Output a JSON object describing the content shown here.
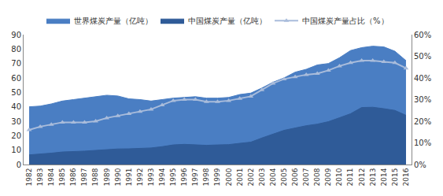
{
  "chart_data": {
    "type": "area",
    "categories": [
      "1982",
      "1983",
      "1984",
      "1985",
      "1986",
      "1987",
      "1988",
      "1989",
      "1990",
      "1991",
      "1992",
      "1993",
      "1994",
      "1995",
      "1996",
      "1997",
      "1998",
      "1999",
      "2000",
      "2001",
      "2002",
      "2003",
      "2004",
      "2005",
      "2006",
      "2007",
      "2008",
      "2009",
      "2010",
      "2011",
      "2012",
      "2013",
      "2014",
      "2015",
      "2016"
    ],
    "series": [
      {
        "name": "世界煤炭产量（亿吨）",
        "type": "area",
        "color": "#4a7ec3",
        "values": [
          40,
          40.5,
          42,
          44,
          45,
          46,
          47,
          48,
          47.5,
          45.5,
          45,
          44,
          45,
          46,
          46.5,
          47,
          46,
          46,
          46.5,
          48.5,
          49.5,
          53,
          57,
          60,
          64,
          66,
          69,
          70,
          74,
          79,
          81,
          82,
          81.5,
          78.5,
          72
        ]
      },
      {
        "name": "中国煤炭产量（亿吨）",
        "type": "area",
        "color": "#2f5b98",
        "values": [
          6.7,
          7.1,
          7.9,
          8.7,
          8.9,
          9.3,
          9.8,
          10.5,
          10.8,
          10.9,
          11.2,
          11.5,
          12.4,
          13.6,
          14,
          13.7,
          13.3,
          13.6,
          13.8,
          14.7,
          15.5,
          18.4,
          21.2,
          23.7,
          25.3,
          26.9,
          28,
          29.7,
          32.4,
          35.2,
          39.5,
          39.7,
          38.7,
          37.5,
          34.1
        ]
      },
      {
        "name": "中国煤炭产量占比（%）",
        "type": "line",
        "axis": "y2",
        "color": "#a9bcdb",
        "marker": "triangle",
        "values": [
          16,
          17.5,
          18.5,
          19.5,
          19.5,
          19.5,
          20,
          21.5,
          22.5,
          23.5,
          24.5,
          25.5,
          27.5,
          29.5,
          30,
          30,
          29,
          29,
          29.5,
          30.5,
          31.5,
          34.5,
          37.5,
          39.5,
          40.5,
          41.5,
          42,
          43.5,
          45.5,
          47,
          48,
          48,
          47.5,
          47,
          44.5
        ]
      }
    ],
    "ylim": [
      0,
      90
    ],
    "yticks": [
      0,
      10,
      20,
      30,
      40,
      50,
      60,
      70,
      80,
      90
    ],
    "y2lim": [
      0,
      60
    ],
    "y2ticks": [
      {
        "value": 0,
        "label": "0%"
      },
      {
        "value": 10,
        "label": "10%"
      },
      {
        "value": 20,
        "label": "20%"
      },
      {
        "value": 30,
        "label": "30%"
      },
      {
        "value": 40,
        "label": "40%"
      },
      {
        "value": 50,
        "label": "50%"
      },
      {
        "value": 60,
        "label": "60%"
      }
    ],
    "grid": false,
    "legend": "top"
  }
}
